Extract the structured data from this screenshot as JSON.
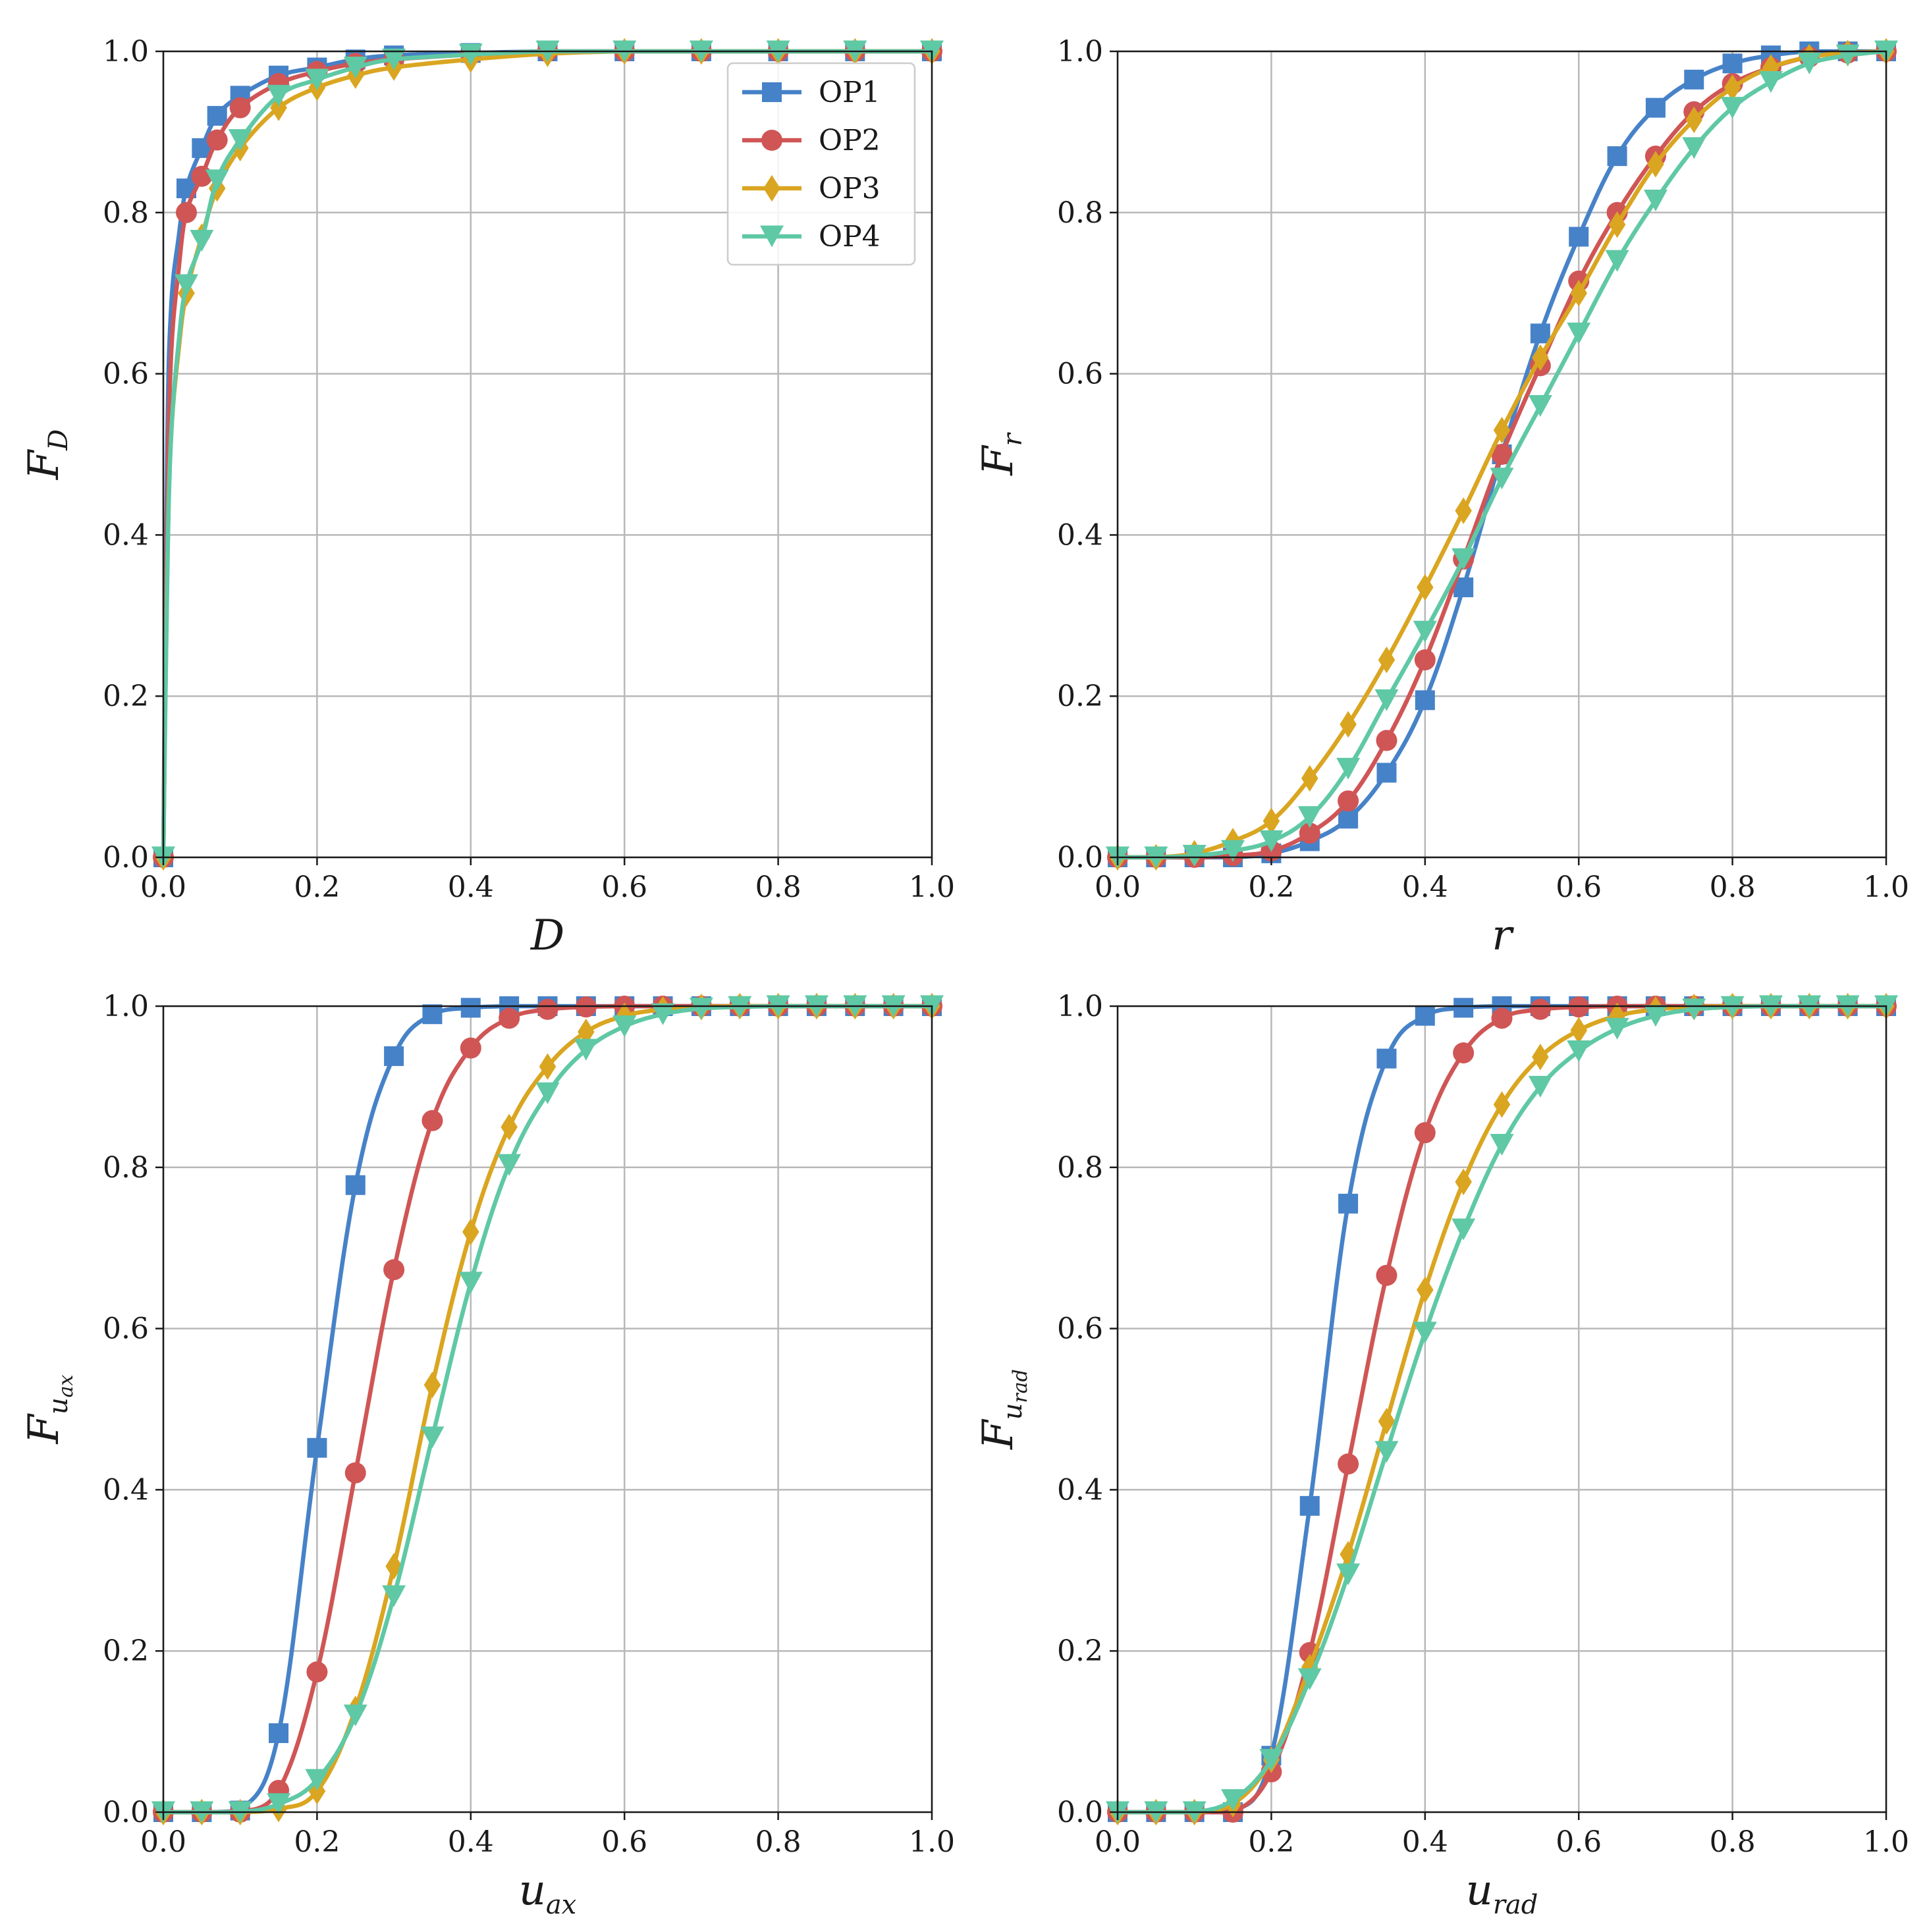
{
  "colors": {
    "OP1": "#4682c8",
    "OP2": "#d05555",
    "OP3": "#daa520",
    "OP4": "#5fc8a5"
  },
  "markers": {
    "OP1": "square",
    "OP2": "circle",
    "OP3": "diamond",
    "OP4": "triangle-down"
  },
  "chart_data": [
    {
      "id": "D",
      "type": "line",
      "xlabel": {
        "main": "D",
        "sub": ""
      },
      "ylabel": {
        "main": "F",
        "sub": "D"
      },
      "xlim": [
        0,
        1
      ],
      "ylim": [
        0,
        1
      ],
      "xticks": [
        "0.0",
        "0.2",
        "0.4",
        "0.6",
        "0.8",
        "1.0"
      ],
      "yticks": [
        "0.0",
        "0.2",
        "0.4",
        "0.6",
        "0.8",
        "1.0"
      ],
      "grid": true,
      "legend": {
        "position": "top-right",
        "entries": [
          "OP1",
          "OP2",
          "OP3",
          "OP4"
        ]
      },
      "series": [
        {
          "name": "OP1",
          "x": [
            0,
            0.005,
            0.01,
            0.02,
            0.03,
            0.05,
            0.07,
            0.1,
            0.15,
            0.2,
            0.25,
            0.3,
            0.4,
            0.5,
            0.6,
            0.7,
            0.8,
            0.9,
            1.0
          ],
          "y": [
            0.0,
            0.5,
            0.68,
            0.77,
            0.83,
            0.88,
            0.92,
            0.945,
            0.97,
            0.98,
            0.99,
            0.995,
            0.998,
            1.0,
            1.0,
            1.0,
            1.0,
            1.0,
            1.0
          ]
        },
        {
          "name": "OP2",
          "x": [
            0,
            0.005,
            0.01,
            0.02,
            0.03,
            0.05,
            0.07,
            0.1,
            0.15,
            0.2,
            0.25,
            0.3,
            0.4,
            0.5,
            0.6,
            0.7,
            0.8,
            0.9,
            1.0
          ],
          "y": [
            0.0,
            0.42,
            0.62,
            0.73,
            0.8,
            0.845,
            0.89,
            0.93,
            0.96,
            0.975,
            0.985,
            0.99,
            0.996,
            1.0,
            1.0,
            1.0,
            1.0,
            1.0,
            1.0
          ]
        },
        {
          "name": "OP3",
          "x": [
            0,
            0.005,
            0.01,
            0.02,
            0.03,
            0.05,
            0.07,
            0.1,
            0.15,
            0.2,
            0.25,
            0.3,
            0.4,
            0.5,
            0.6,
            0.7,
            0.8,
            0.9,
            1.0
          ],
          "y": [
            0.0,
            0.35,
            0.52,
            0.63,
            0.7,
            0.77,
            0.83,
            0.88,
            0.93,
            0.955,
            0.97,
            0.98,
            0.99,
            0.997,
            1.0,
            1.0,
            1.0,
            1.0,
            1.0
          ]
        },
        {
          "name": "OP4",
          "x": [
            0,
            0.005,
            0.01,
            0.02,
            0.03,
            0.05,
            0.07,
            0.1,
            0.15,
            0.2,
            0.25,
            0.3,
            0.4,
            0.5,
            0.6,
            0.7,
            0.8,
            0.9,
            1.0
          ],
          "y": [
            0.0,
            0.34,
            0.52,
            0.64,
            0.71,
            0.765,
            0.84,
            0.89,
            0.945,
            0.965,
            0.98,
            0.99,
            0.996,
            1.0,
            1.0,
            1.0,
            1.0,
            1.0,
            1.0
          ]
        }
      ]
    },
    {
      "id": "r",
      "type": "line",
      "xlabel": {
        "main": "r",
        "sub": ""
      },
      "ylabel": {
        "main": "F",
        "sub": "r"
      },
      "xlim": [
        0,
        1
      ],
      "ylim": [
        0,
        1
      ],
      "xticks": [
        "0.0",
        "0.2",
        "0.4",
        "0.6",
        "0.8",
        "1.0"
      ],
      "yticks": [
        "0.0",
        "0.2",
        "0.4",
        "0.6",
        "0.8",
        "1.0"
      ],
      "grid": true,
      "series": [
        {
          "name": "OP1",
          "x": [
            0,
            0.05,
            0.1,
            0.15,
            0.2,
            0.25,
            0.3,
            0.35,
            0.4,
            0.45,
            0.5,
            0.55,
            0.6,
            0.65,
            0.7,
            0.75,
            0.8,
            0.85,
            0.9,
            0.95,
            1.0
          ],
          "y": [
            0.0,
            0.0,
            0.0,
            0.0,
            0.005,
            0.02,
            0.048,
            0.105,
            0.195,
            0.335,
            0.5,
            0.65,
            0.77,
            0.87,
            0.93,
            0.965,
            0.985,
            0.995,
            1.0,
            1.0,
            1.0
          ]
        },
        {
          "name": "OP2",
          "x": [
            0,
            0.05,
            0.1,
            0.15,
            0.2,
            0.25,
            0.3,
            0.35,
            0.4,
            0.45,
            0.5,
            0.55,
            0.6,
            0.65,
            0.7,
            0.75,
            0.8,
            0.85,
            0.9,
            0.95,
            1.0
          ],
          "y": [
            0.0,
            0.0,
            0.0,
            0.002,
            0.008,
            0.03,
            0.07,
            0.145,
            0.245,
            0.37,
            0.5,
            0.61,
            0.715,
            0.8,
            0.87,
            0.925,
            0.96,
            0.98,
            0.993,
            0.998,
            1.0
          ]
        },
        {
          "name": "OP3",
          "x": [
            0,
            0.05,
            0.1,
            0.15,
            0.2,
            0.25,
            0.3,
            0.35,
            0.4,
            0.45,
            0.5,
            0.55,
            0.6,
            0.65,
            0.7,
            0.75,
            0.8,
            0.85,
            0.9,
            0.95,
            1.0
          ],
          "y": [
            0.0,
            0.0,
            0.005,
            0.02,
            0.045,
            0.098,
            0.165,
            0.245,
            0.335,
            0.43,
            0.53,
            0.62,
            0.7,
            0.785,
            0.86,
            0.915,
            0.955,
            0.98,
            0.993,
            0.998,
            1.0
          ]
        },
        {
          "name": "OP4",
          "x": [
            0,
            0.05,
            0.1,
            0.15,
            0.2,
            0.25,
            0.3,
            0.35,
            0.4,
            0.45,
            0.5,
            0.55,
            0.6,
            0.65,
            0.7,
            0.75,
            0.8,
            0.85,
            0.9,
            0.95,
            1.0
          ],
          "y": [
            0.0,
            0.0,
            0.002,
            0.008,
            0.02,
            0.05,
            0.11,
            0.195,
            0.28,
            0.37,
            0.47,
            0.56,
            0.65,
            0.74,
            0.815,
            0.88,
            0.93,
            0.962,
            0.985,
            0.995,
            1.0
          ]
        }
      ]
    },
    {
      "id": "uax",
      "type": "line",
      "xlabel": {
        "main": "u",
        "sub": "ax"
      },
      "ylabel": {
        "main": "F",
        "sub": "u",
        "subsub": "ax"
      },
      "xlim": [
        0,
        1
      ],
      "ylim": [
        0,
        1
      ],
      "xticks": [
        "0.0",
        "0.2",
        "0.4",
        "0.6",
        "0.8",
        "1.0"
      ],
      "yticks": [
        "0.0",
        "0.2",
        "0.4",
        "0.6",
        "0.8",
        "1.0"
      ],
      "grid": true,
      "series": [
        {
          "name": "OP1",
          "x": [
            0,
            0.05,
            0.1,
            0.15,
            0.2,
            0.25,
            0.3,
            0.35,
            0.4,
            0.45,
            0.5,
            0.55,
            0.6,
            0.65,
            0.7,
            0.75,
            0.8,
            0.85,
            0.9,
            0.95,
            1.0
          ],
          "y": [
            0.0,
            0.0,
            0.002,
            0.098,
            0.452,
            0.778,
            0.938,
            0.99,
            0.998,
            1.0,
            1.0,
            1.0,
            1.0,
            1.0,
            1.0,
            1.0,
            1.0,
            1.0,
            1.0,
            1.0,
            1.0
          ]
        },
        {
          "name": "OP2",
          "x": [
            0,
            0.05,
            0.1,
            0.15,
            0.2,
            0.25,
            0.3,
            0.35,
            0.4,
            0.45,
            0.5,
            0.55,
            0.6,
            0.65,
            0.7,
            0.75,
            0.8,
            0.85,
            0.9,
            0.95,
            1.0
          ],
          "y": [
            0.0,
            0.0,
            0.0,
            0.027,
            0.174,
            0.421,
            0.673,
            0.858,
            0.948,
            0.985,
            0.996,
            0.999,
            1.0,
            1.0,
            1.0,
            1.0,
            1.0,
            1.0,
            1.0,
            1.0,
            1.0
          ]
        },
        {
          "name": "OP3",
          "x": [
            0,
            0.05,
            0.1,
            0.15,
            0.2,
            0.25,
            0.3,
            0.35,
            0.4,
            0.45,
            0.5,
            0.55,
            0.6,
            0.65,
            0.7,
            0.75,
            0.8,
            0.85,
            0.9,
            0.95,
            1.0
          ],
          "y": [
            0.0,
            0.0,
            0.0,
            0.004,
            0.026,
            0.128,
            0.305,
            0.53,
            0.72,
            0.85,
            0.925,
            0.968,
            0.988,
            0.996,
            0.999,
            1.0,
            1.0,
            1.0,
            1.0,
            1.0,
            1.0
          ]
        },
        {
          "name": "OP4",
          "x": [
            0,
            0.05,
            0.1,
            0.15,
            0.2,
            0.25,
            0.3,
            0.35,
            0.4,
            0.45,
            0.5,
            0.55,
            0.6,
            0.65,
            0.7,
            0.75,
            0.8,
            0.85,
            0.9,
            0.95,
            1.0
          ],
          "y": [
            0.0,
            0.0,
            0.0,
            0.01,
            0.04,
            0.12,
            0.268,
            0.465,
            0.657,
            0.803,
            0.892,
            0.946,
            0.975,
            0.99,
            0.997,
            0.999,
            1.0,
            1.0,
            1.0,
            1.0,
            1.0
          ]
        }
      ]
    },
    {
      "id": "urad",
      "type": "line",
      "xlabel": {
        "main": "u",
        "sub": "rad"
      },
      "ylabel": {
        "main": "F",
        "sub": "u",
        "subsub": "rad"
      },
      "xlim": [
        0,
        1
      ],
      "ylim": [
        0,
        1
      ],
      "xticks": [
        "0.0",
        "0.2",
        "0.4",
        "0.6",
        "0.8",
        "1.0"
      ],
      "yticks": [
        "0.0",
        "0.2",
        "0.4",
        "0.6",
        "0.8",
        "1.0"
      ],
      "grid": true,
      "series": [
        {
          "name": "OP1",
          "x": [
            0,
            0.05,
            0.1,
            0.15,
            0.2,
            0.25,
            0.3,
            0.35,
            0.4,
            0.45,
            0.5,
            0.55,
            0.6,
            0.65,
            0.7,
            0.75,
            0.8,
            0.85,
            0.9,
            0.95,
            1.0
          ],
          "y": [
            0.0,
            0.0,
            0.0,
            0.0,
            0.07,
            0.38,
            0.755,
            0.935,
            0.988,
            0.998,
            1.0,
            1.0,
            1.0,
            1.0,
            1.0,
            1.0,
            1.0,
            1.0,
            1.0,
            1.0,
            1.0
          ]
        },
        {
          "name": "OP2",
          "x": [
            0,
            0.05,
            0.1,
            0.15,
            0.2,
            0.25,
            0.3,
            0.35,
            0.4,
            0.45,
            0.5,
            0.55,
            0.6,
            0.65,
            0.7,
            0.75,
            0.8,
            0.85,
            0.9,
            0.95,
            1.0
          ],
          "y": [
            0.0,
            0.0,
            0.0,
            0.0,
            0.05,
            0.198,
            0.432,
            0.666,
            0.843,
            0.942,
            0.985,
            0.996,
            0.999,
            1.0,
            1.0,
            1.0,
            1.0,
            1.0,
            1.0,
            1.0,
            1.0
          ]
        },
        {
          "name": "OP3",
          "x": [
            0,
            0.05,
            0.1,
            0.15,
            0.2,
            0.25,
            0.3,
            0.35,
            0.4,
            0.45,
            0.5,
            0.55,
            0.6,
            0.65,
            0.7,
            0.75,
            0.8,
            0.85,
            0.9,
            0.95,
            1.0
          ],
          "y": [
            0.0,
            0.0,
            0.0,
            0.01,
            0.065,
            0.18,
            0.32,
            0.485,
            0.648,
            0.782,
            0.878,
            0.937,
            0.97,
            0.988,
            0.996,
            0.999,
            1.0,
            1.0,
            1.0,
            1.0,
            1.0
          ]
        },
        {
          "name": "OP4",
          "x": [
            0,
            0.05,
            0.1,
            0.15,
            0.2,
            0.25,
            0.3,
            0.35,
            0.4,
            0.45,
            0.5,
            0.55,
            0.6,
            0.65,
            0.7,
            0.75,
            0.8,
            0.85,
            0.9,
            0.95,
            1.0
          ],
          "y": [
            0.0,
            0.0,
            0.0,
            0.015,
            0.065,
            0.165,
            0.295,
            0.447,
            0.595,
            0.723,
            0.828,
            0.9,
            0.944,
            0.972,
            0.988,
            0.996,
            0.999,
            1.0,
            1.0,
            1.0,
            1.0
          ]
        }
      ]
    }
  ]
}
